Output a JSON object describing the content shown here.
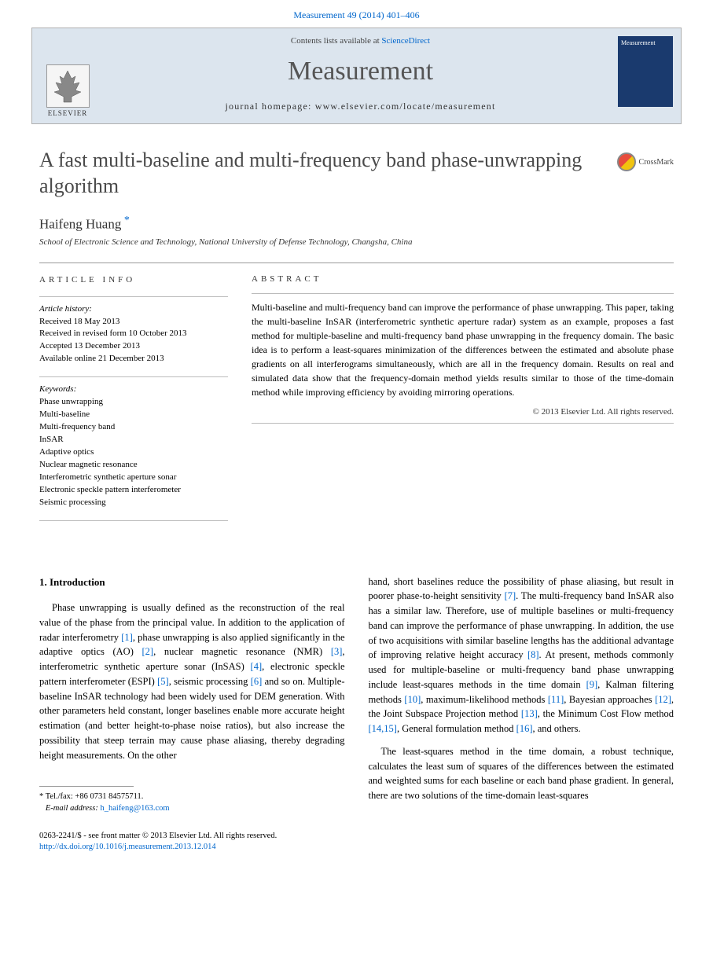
{
  "citation": "Measurement 49 (2014) 401–406",
  "masthead": {
    "contents_prefix": "Contents lists available at ",
    "contents_link": "ScienceDirect",
    "journal": "Measurement",
    "homepage_label": "journal homepage: www.elsevier.com/locate/measurement",
    "publisher": "ELSEVIER",
    "cover_text": "Measurement"
  },
  "crossmark": "CrossMark",
  "title": "A fast multi-baseline and multi-frequency band phase-unwrapping algorithm",
  "author": "Haifeng Huang",
  "affiliation": "School of Electronic Science and Technology, National University of Defense Technology, Changsha, China",
  "info": {
    "label": "ARTICLE INFO",
    "history_label": "Article history:",
    "received": "Received 18 May 2013",
    "revised": "Received in revised form 10 October 2013",
    "accepted": "Accepted 13 December 2013",
    "online": "Available online 21 December 2013",
    "keywords_label": "Keywords:",
    "keywords": [
      "Phase unwrapping",
      "Multi-baseline",
      "Multi-frequency band",
      "InSAR",
      "Adaptive optics",
      "Nuclear magnetic resonance",
      "Interferometric synthetic aperture sonar",
      "Electronic speckle pattern interferometer",
      "Seismic processing"
    ]
  },
  "abstract": {
    "label": "ABSTRACT",
    "text": "Multi-baseline and multi-frequency band can improve the performance of phase unwrapping. This paper, taking the multi-baseline InSAR (interferometric synthetic aperture radar) system as an example, proposes a fast method for multiple-baseline and multi-frequency band phase unwrapping in the frequency domain. The basic idea is to perform a least-squares minimization of the differences between the estimated and absolute phase gradients on all interferograms simultaneously, which are all in the frequency domain. Results on real and simulated data show that the frequency-domain method yields results similar to those of the time-domain method while improving efficiency by avoiding mirroring operations.",
    "copyright": "© 2013 Elsevier Ltd. All rights reserved."
  },
  "intro": {
    "heading": "1. Introduction",
    "col1_html": "Phase unwrapping is usually defined as the reconstruction of the real value of the phase from the principal value. In addition to the application of radar interferometry <span class='ref'>[1]</span>, phase unwrapping is also applied significantly in the adaptive optics (AO) <span class='ref'>[2]</span>, nuclear magnetic resonance (NMR) <span class='ref'>[3]</span>, interferometric synthetic aperture sonar (InSAS) <span class='ref'>[4]</span>, electronic speckle pattern interferometer (ESPI) <span class='ref'>[5]</span>, seismic processing <span class='ref'>[6]</span> and so on. Multiple-baseline InSAR technology had been widely used for DEM generation. With other parameters held constant, longer baselines enable more accurate height estimation (and better height-to-phase noise ratios), but also increase the possibility that steep terrain may cause phase aliasing, thereby degrading height measurements. On the other",
    "col2_p1_html": "hand, short baselines reduce the possibility of phase aliasing, but result in poorer phase-to-height sensitivity <span class='ref'>[7]</span>. The multi-frequency band InSAR also has a similar law. Therefore, use of multiple baselines or multi-frequency band can improve the performance of phase unwrapping. In addition, the use of two acquisitions with similar baseline lengths has the additional advantage of improving relative height accuracy <span class='ref'>[8]</span>. At present, methods commonly used for multiple-baseline or multi-frequency band phase unwrapping include least-squares methods in the time domain <span class='ref'>[9]</span>, Kalman filtering methods <span class='ref'>[10]</span>, maximum-likelihood methods <span class='ref'>[11]</span>, Bayesian approaches <span class='ref'>[12]</span>, the Joint Subspace Projection method <span class='ref'>[13]</span>, the Minimum Cost Flow method <span class='ref'>[14,15]</span>, General formulation method <span class='ref'>[16]</span>, and others.",
    "col2_p2_html": "The least-squares method in the time domain, a robust technique, calculates the least sum of squares of the differences between the estimated and weighted sums for each baseline or each band phase gradient. In general, there are two solutions of the time-domain least-squares"
  },
  "footnote": {
    "tel": "Tel./fax: +86 0731 84575711.",
    "email_label": "E-mail address:",
    "email": "h_haifeng@163.com"
  },
  "footer": {
    "issn": "0263-2241/$ - see front matter © 2013 Elsevier Ltd. All rights reserved.",
    "doi": "http://dx.doi.org/10.1016/j.measurement.2013.12.014"
  }
}
